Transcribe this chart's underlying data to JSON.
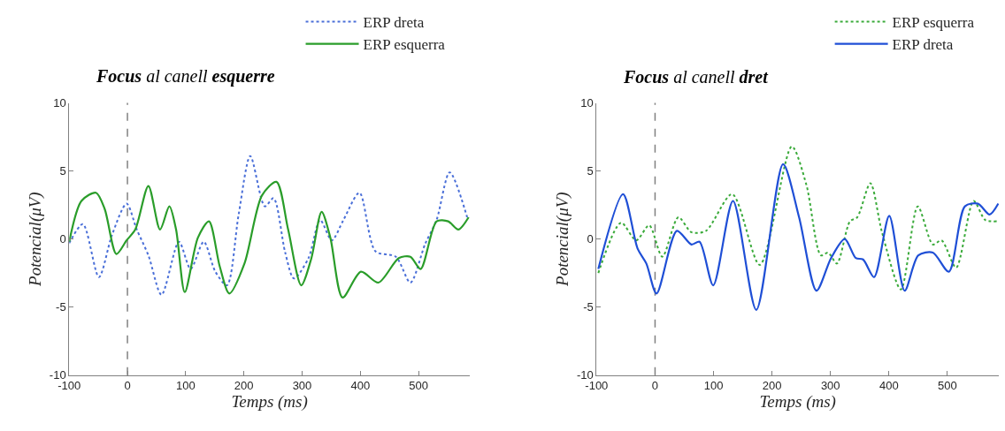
{
  "chart_data": [
    {
      "type": "line",
      "title": "Focus al canell esquerre",
      "xlabel": "Temps (ms)",
      "ylabel": "Potencial(μV)",
      "xlim": [
        -100,
        588
      ],
      "ylim": [
        -10,
        10
      ],
      "xticks": [
        -100,
        0,
        100,
        200,
        300,
        400,
        500
      ],
      "yticks": [
        -10,
        -5,
        0,
        5,
        10
      ],
      "grid": false,
      "legend": "top right",
      "ref_lines": [
        {
          "axis": "x",
          "value": 0,
          "color": "#808080",
          "line_style": "dashed"
        }
      ],
      "series": [
        {
          "name": "ERP dreta",
          "color": "#4a6fd8",
          "line_style": "dotted",
          "x": [
            -100,
            -76.5,
            -49,
            -26.5,
            -1.5,
            16,
            36,
            58.5,
            88.5,
            108.5,
            131,
            151,
            171,
            191,
            211,
            236,
            251,
            271,
            286,
            311,
            331,
            351,
            371,
            398.5,
            426,
            461,
            486,
            511,
            531,
            553.5,
            583.5
          ],
          "values": [
            -0.3,
            1.1,
            -2.8,
            0.3,
            2.6,
            0.7,
            -1.2,
            -4.1,
            -0.2,
            -2.2,
            -0.2,
            -2.4,
            -3.4,
            1.8,
            6.1,
            2.4,
            3.0,
            -1.0,
            -2.9,
            -1.4,
            1.4,
            -0.1,
            1.4,
            3.4,
            -0.9,
            -1.3,
            -3.2,
            -0.4,
            1.4,
            4.9,
            1.6
          ]
        },
        {
          "name": "ERP esquerra",
          "color": "#2a9d2a",
          "line_style": "solid",
          "x": [
            -100,
            -79,
            -54,
            -39,
            -19,
            -1.5,
            13.5,
            36,
            56,
            72,
            83.5,
            98.5,
            121,
            140,
            158.5,
            175,
            201,
            231,
            256,
            276,
            298.5,
            316,
            333.5,
            348.5,
            369.5,
            401,
            431,
            466,
            486,
            503.5,
            531,
            551,
            568.5,
            586
          ],
          "values": [
            -0.2,
            2.8,
            3.4,
            2.2,
            -1.1,
            -0.1,
            0.7,
            3.9,
            0.7,
            2.4,
            0.7,
            -3.9,
            0.1,
            1.3,
            -2.0,
            -4.0,
            -1.8,
            3.2,
            4.2,
            0.7,
            -3.4,
            -1.4,
            2.0,
            0.1,
            -4.3,
            -2.4,
            -3.2,
            -1.4,
            -1.3,
            -2.2,
            1.3,
            1.3,
            0.7,
            1.6
          ]
        }
      ]
    },
    {
      "type": "line",
      "title": "Focus al canell dret",
      "xlabel": "Temps (ms)",
      "ylabel": "Potencial(μV)",
      "xlim": [
        -100,
        588
      ],
      "ylim": [
        -10,
        10
      ],
      "xticks": [
        -100,
        0,
        100,
        200,
        300,
        400,
        500
      ],
      "yticks": [
        -10,
        -5,
        0,
        5,
        10
      ],
      "grid": false,
      "legend": "top right",
      "ref_lines": [
        {
          "axis": "x",
          "value": 0,
          "color": "#808080",
          "line_style": "dashed"
        }
      ],
      "series": [
        {
          "name": "ERP esquerra",
          "color": "#3aaa3a",
          "line_style": "dotted",
          "x": [
            -97,
            -58.2,
            -32.3,
            -10,
            12.4,
            39.8,
            62.2,
            87.1,
            131.8,
            179.1,
            233.8,
            258.7,
            283.6,
            296,
            311,
            333.3,
            345.8,
            368.2,
            388.1,
            420.4,
            449.3,
            475.1,
            490,
            514.9,
            544.8,
            564.7,
            584.6
          ],
          "values": [
            -2.5,
            1.2,
            -0.1,
            1.0,
            -1.3,
            1.6,
            0.5,
            0.6,
            3.3,
            -1.9,
            6.8,
            4.0,
            -1.2,
            -1.0,
            -1.8,
            1.3,
            1.6,
            4.1,
            0.5,
            -3.7,
            2.4,
            -0.4,
            -0.1,
            -2.1,
            2.8,
            1.4,
            1.3
          ]
        },
        {
          "name": "ERP dreta",
          "color": "#1f4fd6",
          "line_style": "solid",
          "x": [
            -97,
            -54.7,
            -29.9,
            -14.9,
            2.5,
            37.3,
            62.2,
            76.1,
            99.5,
            133.3,
            173.1,
            218.9,
            246.3,
            276.1,
            301,
            324.4,
            343.3,
            355.7,
            374.6,
            400.5,
            426.9,
            450.2,
            475.1,
            502.5,
            529.9,
            552.2,
            572.1,
            587
          ],
          "values": [
            -2.2,
            3.3,
            -0.7,
            -1.8,
            -4.0,
            0.6,
            -0.4,
            -0.2,
            -3.4,
            2.8,
            -5.2,
            5.5,
            1.6,
            -3.8,
            -1.4,
            0.0,
            -1.4,
            -1.5,
            -2.8,
            1.7,
            -3.8,
            -1.2,
            -1.0,
            -2.4,
            2.4,
            2.6,
            1.8,
            2.6
          ]
        }
      ]
    }
  ]
}
